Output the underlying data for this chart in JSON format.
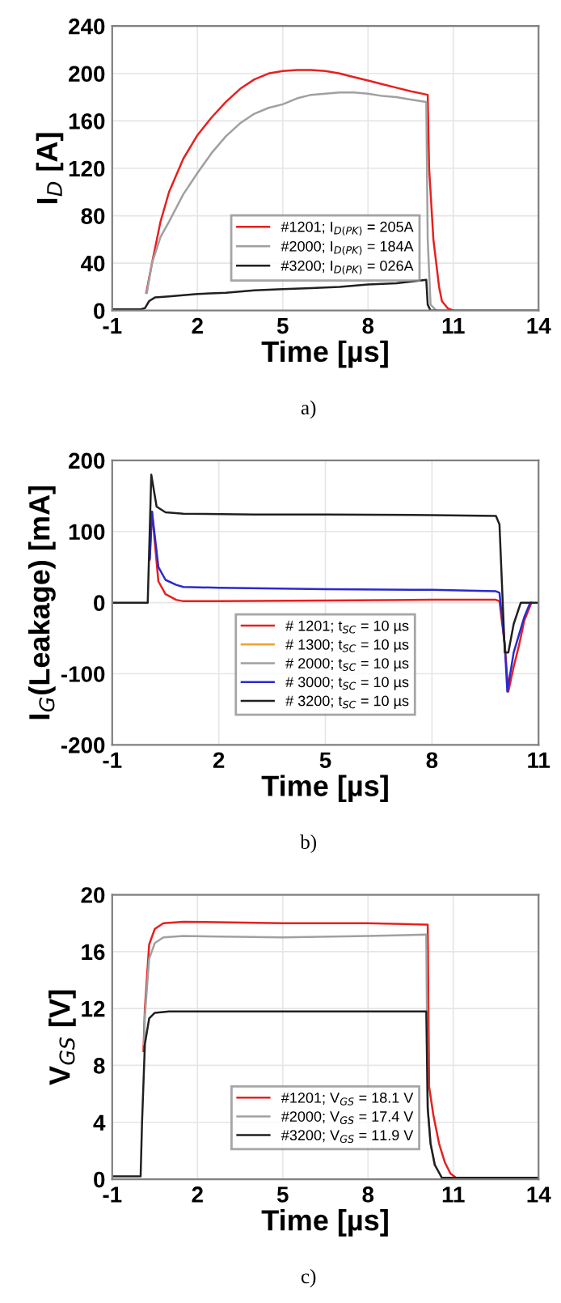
{
  "chart_data": [
    {
      "type": "line",
      "xlabel": "Time [µs]",
      "ylabel": "I$_{D}$ [A]",
      "xlim": [
        -1,
        14
      ],
      "xticks": [
        -1,
        2,
        5,
        8,
        11,
        14
      ],
      "ylim": [
        0,
        240
      ],
      "yticks": [
        0,
        40,
        80,
        120,
        160,
        200,
        240
      ],
      "grid": true,
      "legend": "bottom",
      "annotations": [
        "a)"
      ],
      "series": [
        {
          "name": "#1201; I$_{D(PK)}$ = 205A",
          "color": "#e8201e",
          "x": [
            0.2,
            0.4,
            0.7,
            1,
            1.5,
            2,
            2.5,
            3,
            3.5,
            4,
            4.5,
            5,
            5.5,
            6,
            6.5,
            7,
            7.5,
            8,
            8.5,
            9,
            9.5,
            10.1,
            10.15,
            10.3,
            10.4,
            10.5,
            10.6,
            10.8,
            11
          ],
          "values": [
            15,
            40,
            75,
            100,
            128,
            148,
            163,
            176,
            187,
            195,
            200,
            202,
            203,
            203,
            202,
            200,
            197,
            194,
            191,
            188,
            185,
            182,
            120,
            60,
            40,
            20,
            8,
            2,
            0
          ]
        },
        {
          "name": "#2000; I$_{D(PK)}$ = 184A",
          "color": "#a0a0a0",
          "x": [
            0.22,
            0.4,
            0.7,
            1,
            1.5,
            2,
            2.5,
            3,
            3.5,
            4,
            4.5,
            5,
            5.5,
            6,
            6.5,
            7,
            7.5,
            8,
            8.5,
            9,
            9.5,
            10.05,
            10.1,
            10.2,
            10.4
          ],
          "values": [
            15,
            40,
            62,
            75,
            98,
            116,
            133,
            147,
            158,
            166,
            171,
            174,
            179,
            182,
            183,
            184,
            184,
            183,
            181,
            180,
            178,
            176,
            60,
            5,
            0
          ]
        },
        {
          "name": "#3200; I$_{D(PK)}$ = 026A",
          "color": "#202020",
          "x": [
            -1,
            0,
            0.15,
            0.3,
            0.5,
            1,
            2,
            3,
            4,
            5,
            6,
            7,
            8,
            9,
            10.05,
            10.1,
            10.2,
            14
          ],
          "values": [
            1,
            1,
            2,
            8,
            11,
            12,
            14,
            15,
            17,
            18,
            19,
            20,
            22,
            23,
            26,
            5,
            0,
            0
          ]
        }
      ]
    },
    {
      "type": "line",
      "xlabel": "Time [µs]",
      "ylabel": "I$_{G}$(Leakage) [mA]",
      "xlim": [
        -1,
        11
      ],
      "xticks": [
        -1,
        2,
        5,
        8,
        11
      ],
      "ylim": [
        -200,
        200
      ],
      "yticks": [
        -200,
        -100,
        0,
        100,
        200
      ],
      "grid": true,
      "legend": "bottom",
      "annotations": [
        "b)"
      ],
      "series": [
        {
          "name": "# 1201; t$_{SC}$ = 10 µs",
          "color": "#e8201e",
          "x": [
            0.05,
            0.12,
            0.3,
            0.5,
            0.8,
            1,
            2,
            5,
            8,
            9.8,
            9.9,
            10.05,
            10.15,
            10.3,
            10.45,
            10.6,
            10.8
          ],
          "values": [
            60,
            128,
            30,
            12,
            4,
            2,
            2,
            3,
            4,
            4,
            2,
            -60,
            -125,
            -90,
            -60,
            -25,
            0
          ]
        },
        {
          "name": "# 1300; t$_{SC}$ = 10 µs",
          "color": "#f0a030"
        },
        {
          "name": "# 2000; t$_{SC}$ = 10 µs",
          "color": "#a0a0a0"
        },
        {
          "name": "# 3000; t$_{SC}$ = 10 µs",
          "color": "#2a2ad0",
          "x": [
            0.06,
            0.12,
            0.3,
            0.5,
            0.8,
            1,
            2,
            5,
            8,
            9.8,
            9.9,
            10.05,
            10.12,
            10.3,
            10.45,
            10.6,
            10.75
          ],
          "values": [
            62,
            128,
            50,
            32,
            25,
            22,
            21,
            19,
            18,
            16,
            14,
            -60,
            -125,
            -70,
            -45,
            -20,
            -2
          ]
        },
        {
          "name": "# 3200; t$_{SC}$ = 10 µs",
          "color": "#202020",
          "x": [
            -1,
            0,
            0.05,
            0.1,
            0.25,
            0.5,
            1,
            3,
            5,
            8,
            9.8,
            9.9,
            10.05,
            10.15,
            10.3,
            10.5,
            11
          ],
          "values": [
            0,
            0,
            90,
            180,
            135,
            127,
            125,
            124,
            124,
            123,
            122,
            110,
            -70,
            -70,
            -30,
            0,
            0
          ]
        }
      ]
    },
    {
      "type": "line",
      "xlabel": "Time [µs]",
      "ylabel": "V$_{GS}$ [V]",
      "xlim": [
        -1,
        14
      ],
      "xticks": [
        -1,
        2,
        5,
        8,
        11,
        14
      ],
      "ylim": [
        0,
        20
      ],
      "yticks": [
        0,
        4,
        8,
        12,
        16,
        20
      ],
      "grid": true,
      "legend": "bottom",
      "annotations": [
        "c)"
      ],
      "series": [
        {
          "name": "#1201; V$_{GS}$ = 18.1 V",
          "color": "#e8201e",
          "x": [
            0.1,
            0.15,
            0.3,
            0.5,
            0.8,
            1.5,
            5,
            8,
            10.1,
            10.15,
            10.3,
            10.5,
            10.7,
            10.9,
            11.1
          ],
          "values": [
            9,
            12,
            16.5,
            17.6,
            18.0,
            18.1,
            18.0,
            18.0,
            17.9,
            6.5,
            4.5,
            2.5,
            1.2,
            0.4,
            0.1
          ]
        },
        {
          "name": "#2000; V$_{GS}$ = 17.4 V",
          "color": "#a0a0a0",
          "x": [
            0.12,
            0.15,
            0.3,
            0.5,
            0.8,
            1.5,
            5,
            8,
            10.05,
            10.1,
            10.2,
            10.35
          ],
          "values": [
            9.5,
            11.5,
            15.5,
            16.6,
            17.0,
            17.1,
            17.0,
            17.1,
            17.2,
            5,
            2.5,
            1
          ]
        },
        {
          "name": "#3200; V$_{GS}$ = 11.9 V",
          "color": "#202020",
          "x": [
            -1,
            0,
            0.05,
            0.15,
            0.3,
            0.5,
            1,
            5,
            8,
            10.05,
            10.1,
            10.2,
            10.35,
            10.6,
            14
          ],
          "values": [
            0.2,
            0.2,
            4,
            9.5,
            11.3,
            11.7,
            11.8,
            11.8,
            11.8,
            11.8,
            5,
            2.5,
            1,
            0.1,
            0.1
          ]
        }
      ]
    }
  ]
}
